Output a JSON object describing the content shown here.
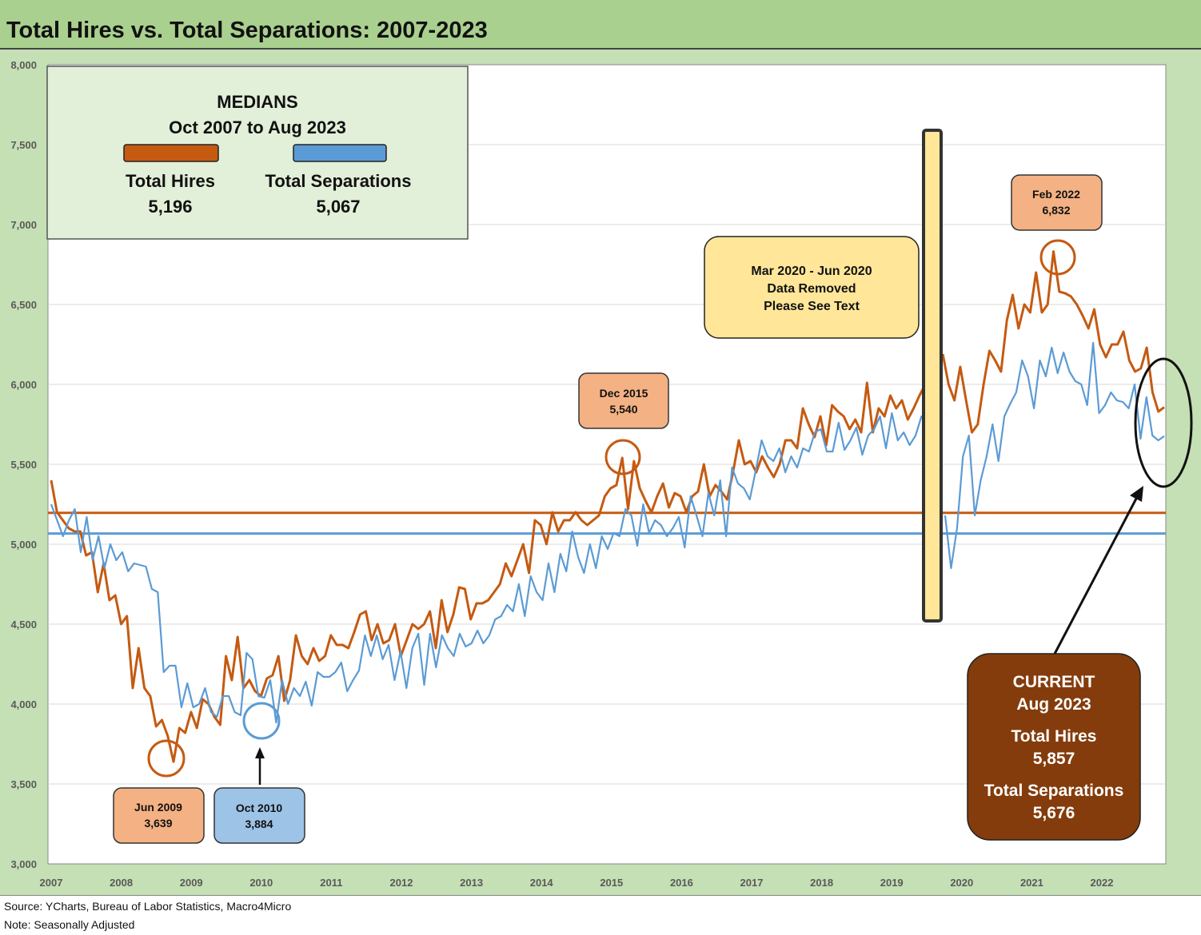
{
  "title": "Total Hires vs. Total Separations: 2007-2023",
  "source": "Source: YCharts, Bureau of Labor Statistics, Macro4Micro",
  "note": "Note: Seasonally Adjusted",
  "colors": {
    "hires": "#c55a11",
    "separations": "#5b9bd5",
    "plot_bg": "#ffffff",
    "frame_bg": "#c5e0b4",
    "title_bg": "#a9d08e",
    "legend_bg": "#e2efd9",
    "gap_bar": "#ffe699",
    "callout_orange": "#f4b183",
    "callout_blue": "#9dc3e6",
    "callout_yellow": "#ffe699",
    "current_box": "#843c0c"
  },
  "legend": {
    "title_line1": "MEDIANS",
    "title_line2": "Oct 2007 to Aug 2023",
    "hires_label": "Total Hires",
    "hires_value": "5,196",
    "separations_label": "Total Separations",
    "separations_value": "5,067"
  },
  "annotations": {
    "jun2009": {
      "line1": "Jun 2009",
      "line2": "3,639"
    },
    "oct2010": {
      "line1": "Oct 2010",
      "line2": "3,884"
    },
    "dec2015": {
      "line1": "Dec 2015",
      "line2": "5,540"
    },
    "feb2022": {
      "line1": "Feb 2022",
      "line2": "6,832"
    },
    "gap": {
      "line1": "Mar 2020 - Jun 2020",
      "line2": "Data Removed",
      "line3": "Please See Text"
    },
    "current": {
      "line1": "CURRENT",
      "line2": "Aug 2023",
      "line3": "Total Hires",
      "line4": "5,857",
      "line5": "Total Separations",
      "line6": "5,676"
    }
  },
  "chart_data": {
    "type": "line",
    "title": "Total Hires vs. Total Separations: 2007-2023",
    "xlabel": "",
    "ylabel": "",
    "ylim": [
      3000,
      8000
    ],
    "yticks": [
      "3,000",
      "3,500",
      "4,000",
      "4,500",
      "5,000",
      "5,500",
      "6,000",
      "6,500",
      "7,000",
      "7,500",
      "8,000"
    ],
    "xtick_labels": [
      "2007",
      "2008",
      "2009",
      "2010",
      "2011",
      "2012",
      "2013",
      "2014",
      "2015",
      "2016",
      "2017",
      "2018",
      "2019",
      "2020",
      "2021",
      "2022"
    ],
    "grid": true,
    "medians": {
      "hires": 5196,
      "separations": 5067
    },
    "x_start": "Oct 2007",
    "gap_after_index": 148,
    "series": [
      {
        "name": "Total Hires",
        "values": [
          5400,
          5200,
          5150,
          5100,
          5080,
          5080,
          4930,
          4950,
          4700,
          4880,
          4650,
          4680,
          4500,
          4550,
          4100,
          4350,
          4100,
          4050,
          3860,
          3900,
          3800,
          3639,
          3850,
          3820,
          3950,
          3850,
          4030,
          4000,
          3920,
          3870,
          4300,
          4150,
          4420,
          4100,
          4150,
          4080,
          4050,
          4160,
          4180,
          4300,
          4020,
          4150,
          4430,
          4300,
          4250,
          4350,
          4270,
          4300,
          4430,
          4370,
          4370,
          4350,
          4450,
          4560,
          4580,
          4400,
          4500,
          4380,
          4400,
          4500,
          4300,
          4400,
          4500,
          4470,
          4500,
          4580,
          4350,
          4650,
          4450,
          4560,
          4730,
          4720,
          4530,
          4630,
          4630,
          4650,
          4700,
          4750,
          4880,
          4800,
          4900,
          5000,
          4820,
          5150,
          5120,
          5000,
          5200,
          5080,
          5150,
          5150,
          5200,
          5150,
          5120,
          5150,
          5180,
          5300,
          5350,
          5370,
          5540,
          5220,
          5520,
          5350,
          5270,
          5200,
          5300,
          5380,
          5230,
          5320,
          5300,
          5200,
          5300,
          5330,
          5500,
          5300,
          5370,
          5330,
          5280,
          5450,
          5650,
          5500,
          5520,
          5450,
          5550,
          5480,
          5420,
          5500,
          5650,
          5650,
          5600,
          5850,
          5750,
          5670,
          5800,
          5620,
          5870,
          5830,
          5800,
          5720,
          5780,
          5700,
          6010,
          5700,
          5850,
          5800,
          5930,
          5850,
          5900,
          5780,
          5850,
          5930,
          6000,
          6030,
          null,
          6190,
          6000,
          5900,
          6110,
          5900,
          5700,
          5750,
          6000,
          6210,
          6150,
          6080,
          6400,
          6560,
          6350,
          6500,
          6450,
          6700,
          6450,
          6500,
          6832,
          6580,
          6570,
          6550,
          6500,
          6430,
          6350,
          6470,
          6250,
          6170,
          6250,
          6250,
          6330,
          6150,
          6080,
          6100,
          6230,
          5950,
          5830,
          5857
        ]
      },
      {
        "name": "Total Separations",
        "values": [
          5250,
          5150,
          5050,
          5150,
          5220,
          4950,
          5170,
          4900,
          5050,
          4850,
          5000,
          4900,
          4950,
          4830,
          4880,
          4870,
          4860,
          4720,
          4700,
          4200,
          4240,
          4240,
          3980,
          4130,
          3980,
          4000,
          4100,
          3950,
          3920,
          4050,
          4050,
          3950,
          3930,
          4320,
          4280,
          4050,
          4040,
          4150,
          3884,
          4150,
          4000,
          4100,
          4050,
          4140,
          3990,
          4200,
          4170,
          4170,
          4200,
          4260,
          4080,
          4150,
          4210,
          4430,
          4300,
          4430,
          4280,
          4370,
          4150,
          4330,
          4100,
          4350,
          4440,
          4120,
          4440,
          4230,
          4430,
          4350,
          4300,
          4440,
          4360,
          4380,
          4460,
          4380,
          4430,
          4530,
          4550,
          4620,
          4580,
          4750,
          4550,
          4800,
          4700,
          4650,
          4880,
          4700,
          4940,
          4830,
          5080,
          4920,
          4820,
          5000,
          4850,
          5050,
          4970,
          5070,
          5050,
          5220,
          5180,
          4990,
          5250,
          5070,
          5150,
          5120,
          5050,
          5100,
          5170,
          4980,
          5300,
          5180,
          5050,
          5320,
          5180,
          5400,
          5050,
          5480,
          5380,
          5350,
          5280,
          5460,
          5650,
          5550,
          5520,
          5600,
          5450,
          5550,
          5480,
          5600,
          5580,
          5700,
          5720,
          5580,
          5580,
          5760,
          5590,
          5650,
          5730,
          5560,
          5680,
          5720,
          5800,
          5600,
          5820,
          5650,
          5700,
          5620,
          5680,
          5800,
          5780,
          5750,
          null,
          5180,
          4850,
          5100,
          5550,
          5680,
          5180,
          5400,
          5550,
          5750,
          5520,
          5800,
          5880,
          5950,
          6150,
          6050,
          5850,
          6150,
          6050,
          6230,
          6070,
          6200,
          6080,
          6020,
          6000,
          5870,
          6260,
          5820,
          5870,
          5950,
          5900,
          5890,
          5850,
          6000,
          5660,
          5920,
          5680,
          5650,
          5676
        ]
      }
    ]
  }
}
